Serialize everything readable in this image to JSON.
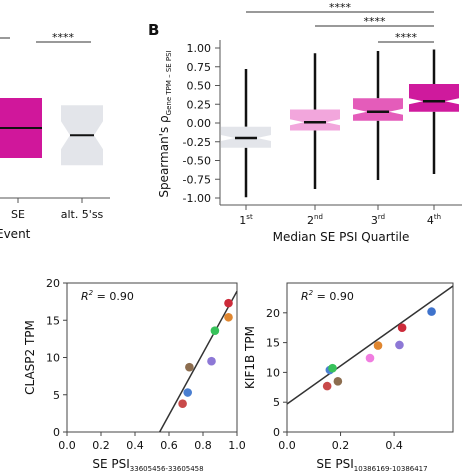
{
  "panel_labels": {
    "b": "B"
  },
  "chart_data": [
    {
      "id": "A_partial",
      "type": "box",
      "categories": [
        "SE",
        "alt. 5'ss"
      ],
      "xlabel_fragment": "Event",
      "significance": [
        {
          "label": "****",
          "between": [
            "SE",
            "alt. 5'ss"
          ]
        }
      ],
      "boxes": [
        {
          "category": "SE",
          "color": "#d0179b",
          "median": 0.0,
          "q1": -0.5,
          "q3": 0.5,
          "notch": false
        },
        {
          "category": "alt. 5'ss",
          "color": "#e3e5ea",
          "median": -0.12,
          "q1": -0.62,
          "q3": 0.38,
          "notch": true
        }
      ]
    },
    {
      "id": "B",
      "type": "box",
      "categories": [
        "1st",
        "2nd",
        "3rd",
        "4th"
      ],
      "category_labels": [
        {
          "base": "1",
          "sup": "st"
        },
        {
          "base": "2",
          "sup": "nd"
        },
        {
          "base": "3",
          "sup": "rd"
        },
        {
          "base": "4",
          "sup": "th"
        }
      ],
      "xlabel": "Median SE PSI Quartile",
      "ylabel": {
        "main": "Spearman's ρ",
        "sub": "Gene TPM – SE PSI"
      },
      "ylim": [
        -1.05,
        1.1
      ],
      "yticks": [
        "1.00",
        "0.75",
        "0.50",
        "0.25",
        "0.00",
        "-0.25",
        "-0.50",
        "-0.75",
        "-1.00"
      ],
      "ytick_values": [
        1.0,
        0.75,
        0.5,
        0.25,
        0.0,
        -0.25,
        -0.5,
        -0.75,
        -1.0
      ],
      "significance": [
        {
          "label": "****",
          "between": [
            "1st",
            "4th"
          ]
        },
        {
          "label": "****",
          "between": [
            "2nd",
            "4th"
          ]
        },
        {
          "label": "****",
          "between": [
            "3rd",
            "4th"
          ]
        }
      ],
      "boxes": [
        {
          "category": "1st",
          "color": "#e3e5ea",
          "min": -0.99,
          "q1": -0.33,
          "median": -0.2,
          "q3": -0.05,
          "max": 0.72,
          "notch_low": -0.24,
          "notch_high": -0.16
        },
        {
          "category": "2nd",
          "color": "#f2a6dc",
          "min": -0.88,
          "q1": -0.1,
          "median": 0.01,
          "q3": 0.18,
          "max": 0.93,
          "notch_low": -0.03,
          "notch_high": 0.05
        },
        {
          "category": "3rd",
          "color": "#e45cba",
          "min": -0.76,
          "q1": 0.03,
          "median": 0.15,
          "q3": 0.33,
          "max": 0.96,
          "notch_low": 0.11,
          "notch_high": 0.19
        },
        {
          "category": "4th",
          "color": "#cf1a9d",
          "min": -0.68,
          "q1": 0.15,
          "median": 0.29,
          "q3": 0.52,
          "max": 0.98,
          "notch_low": 0.25,
          "notch_high": 0.33
        }
      ]
    },
    {
      "id": "C",
      "type": "scatter",
      "xlabel": {
        "main": "SE PSI",
        "sub": "33605456-33605458"
      },
      "ylabel": "CLASP2 TPM",
      "annotation": {
        "prefix": "R",
        "sup": "2",
        "suffix": " = 0.90"
      },
      "xlim": [
        0.0,
        1.0
      ],
      "xticks": [
        "0.0",
        "0.2",
        "0.4",
        "0.6",
        "0.8",
        "1.0"
      ],
      "xtick_values": [
        0.0,
        0.2,
        0.4,
        0.6,
        0.8,
        1.0
      ],
      "ylim": [
        0,
        20
      ],
      "yticks": [
        "0",
        "5",
        "10",
        "15",
        "20"
      ],
      "ytick_values": [
        0,
        5,
        10,
        15,
        20
      ],
      "fit_line": {
        "x": [
          0.545,
          1.0
        ],
        "y": [
          0,
          18.9
        ]
      },
      "points": [
        {
          "x": 0.68,
          "y": 3.8,
          "color": "#c94a4a"
        },
        {
          "x": 0.71,
          "y": 5.3,
          "color": "#4a7fd1"
        },
        {
          "x": 0.72,
          "y": 8.7,
          "color": "#8c6d4f"
        },
        {
          "x": 0.85,
          "y": 9.5,
          "color": "#8d78d6"
        },
        {
          "x": 0.87,
          "y": 13.6,
          "color": "#37c25a"
        },
        {
          "x": 0.95,
          "y": 15.4,
          "color": "#e0862f"
        },
        {
          "x": 0.95,
          "y": 17.3,
          "color": "#cc2b3a"
        }
      ]
    },
    {
      "id": "D",
      "type": "scatter",
      "xlabel": {
        "main": "SE PSI",
        "sub": "10386169-10386417"
      },
      "ylabel": "KIF1B TPM",
      "annotation": {
        "prefix": "R",
        "sup": "2",
        "suffix": " = 0.90"
      },
      "xlim": [
        0.0,
        0.62
      ],
      "xticks": [
        "0.0",
        "0.2",
        "0.4"
      ],
      "xtick_values": [
        0.0,
        0.2,
        0.4
      ],
      "ylim": [
        0,
        25
      ],
      "yticks": [
        "0",
        "5",
        "10",
        "15",
        "20"
      ],
      "ytick_values": [
        0,
        5,
        10,
        15,
        20
      ],
      "fit_line": {
        "x": [
          0.0,
          0.62
        ],
        "y": [
          4.7,
          24.5
        ]
      },
      "points": [
        {
          "x": 0.15,
          "y": 7.7,
          "color": "#c94a4a"
        },
        {
          "x": 0.16,
          "y": 10.4,
          "color": "#4a7fd1"
        },
        {
          "x": 0.17,
          "y": 10.7,
          "color": "#37c25a"
        },
        {
          "x": 0.19,
          "y": 8.5,
          "color": "#8c6d4f"
        },
        {
          "x": 0.31,
          "y": 12.4,
          "color": "#f07de0"
        },
        {
          "x": 0.34,
          "y": 14.5,
          "color": "#e0862f"
        },
        {
          "x": 0.42,
          "y": 14.6,
          "color": "#8d78d6"
        },
        {
          "x": 0.43,
          "y": 17.5,
          "color": "#cc2b3a"
        },
        {
          "x": 0.54,
          "y": 20.2,
          "color": "#3f73cc"
        }
      ]
    }
  ]
}
